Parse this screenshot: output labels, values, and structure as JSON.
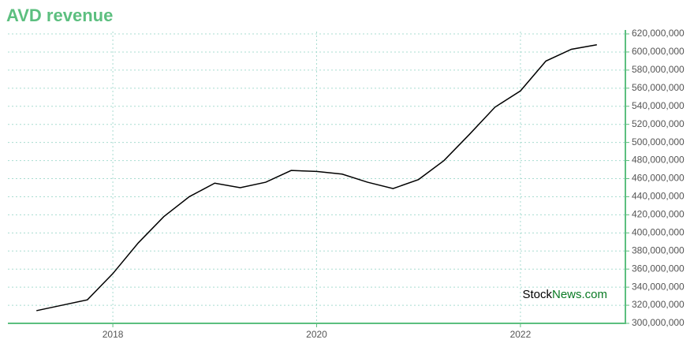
{
  "chart_data": {
    "type": "line",
    "title": "AVD revenue",
    "x": [
      2017.25,
      2017.5,
      2017.75,
      2018,
      2018.25,
      2018.5,
      2018.75,
      2019,
      2019.25,
      2019.5,
      2019.75,
      2020,
      2020.25,
      2020.5,
      2020.75,
      2021,
      2021.25,
      2021.5,
      2021.75,
      2022,
      2022.25,
      2022.5,
      2022.75
    ],
    "series": [
      {
        "name": "AVD revenue",
        "color": "#000000",
        "values": [
          314000000,
          320000000,
          326000000,
          355000000,
          389000000,
          418000000,
          440000000,
          455000000,
          450000000,
          456000000,
          469000000,
          468000000,
          465000000,
          456000000,
          449000000,
          459000000,
          480000000,
          509000000,
          539000000,
          557000000,
          590000000,
          603000000,
          608000000
        ]
      }
    ],
    "xlim": [
      2016.97,
      2023.03
    ],
    "xticks": [
      2018,
      2020,
      2022
    ],
    "ylim": [
      300000000,
      620000000
    ],
    "yticks": [
      {
        "value": 300000000,
        "label": "300,000,000"
      },
      {
        "value": 320000000,
        "label": "320,000,000"
      },
      {
        "value": 340000000,
        "label": "340,000,000"
      },
      {
        "value": 360000000,
        "label": "360,000,000"
      },
      {
        "value": 380000000,
        "label": "380,000,000"
      },
      {
        "value": 400000000,
        "label": "400,000,000"
      },
      {
        "value": 420000000,
        "label": "420,000,000"
      },
      {
        "value": 440000000,
        "label": "440,000,000"
      },
      {
        "value": 460000000,
        "label": "460,000,000"
      },
      {
        "value": 480000000,
        "label": "480,000,000"
      },
      {
        "value": 500000000,
        "label": "500,000,000"
      },
      {
        "value": 520000000,
        "label": "520,000,000"
      },
      {
        "value": 540000000,
        "label": "540,000,000"
      },
      {
        "value": 560000000,
        "label": "560,000,000"
      },
      {
        "value": 580000000,
        "label": "580,000,000"
      },
      {
        "value": 600000000,
        "label": "600,000,000"
      },
      {
        "value": 620000000,
        "label": "620,000,000"
      }
    ],
    "grid": true,
    "axis_color": "#5cbf7f",
    "grid_color": "#a8dcd0",
    "watermark": {
      "part1": "Stock",
      "part2": "News.com",
      "color1": "#000000",
      "color2": "#0a7a24"
    }
  }
}
